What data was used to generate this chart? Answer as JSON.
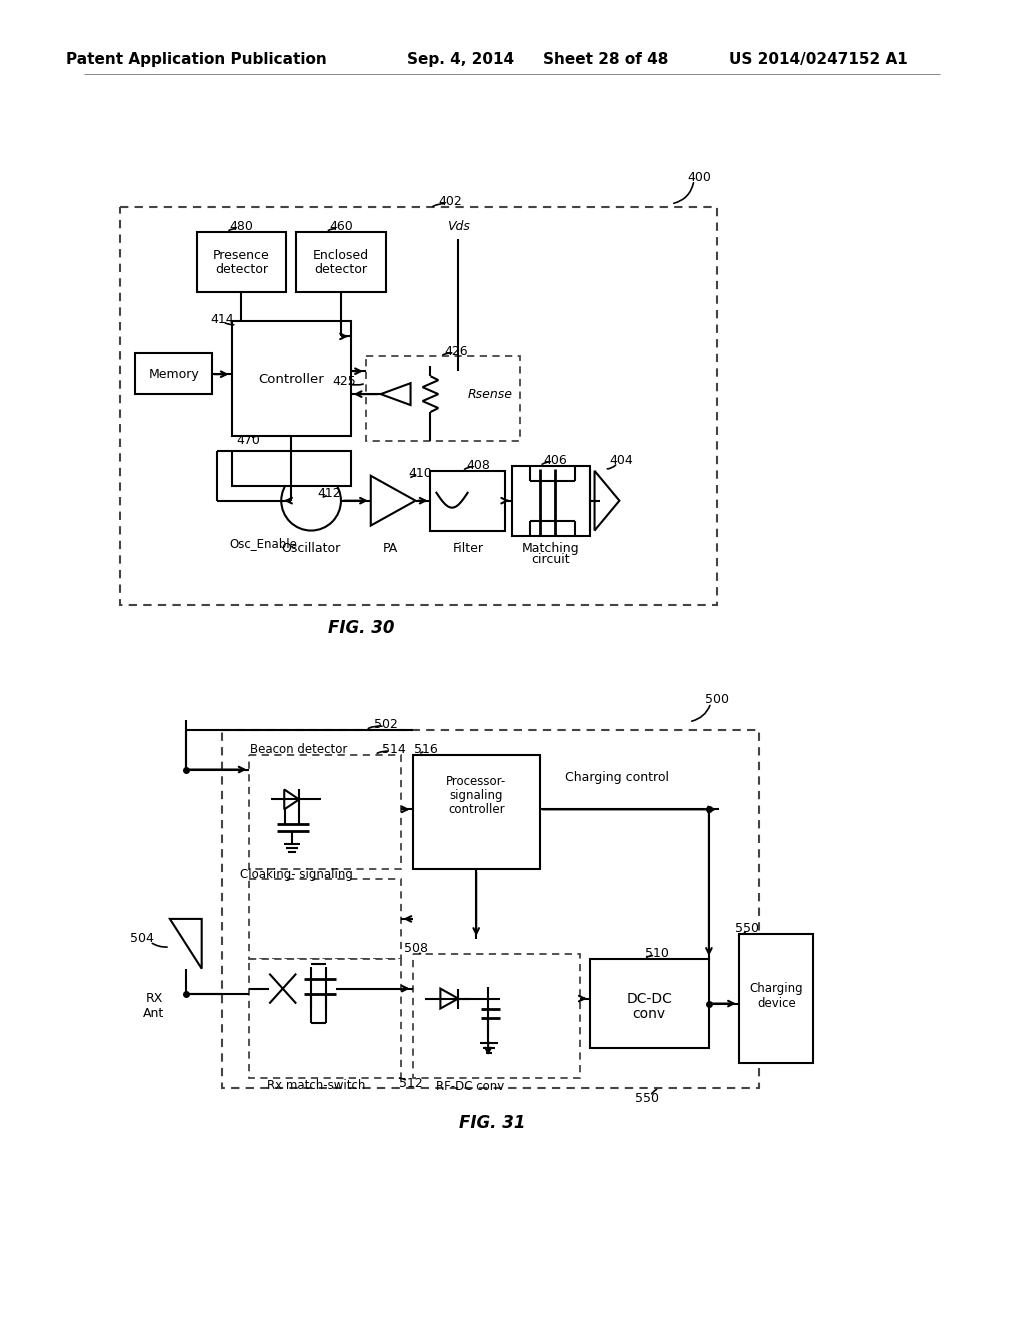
{
  "bg": "#ffffff",
  "header1": "Patent Application Publication",
  "header2": "Sep. 4, 2014",
  "header3": "Sheet 28 of 48",
  "header4": "US 2014/0247152 A1",
  "fig30": "FIG. 30",
  "fig31": "FIG. 31"
}
